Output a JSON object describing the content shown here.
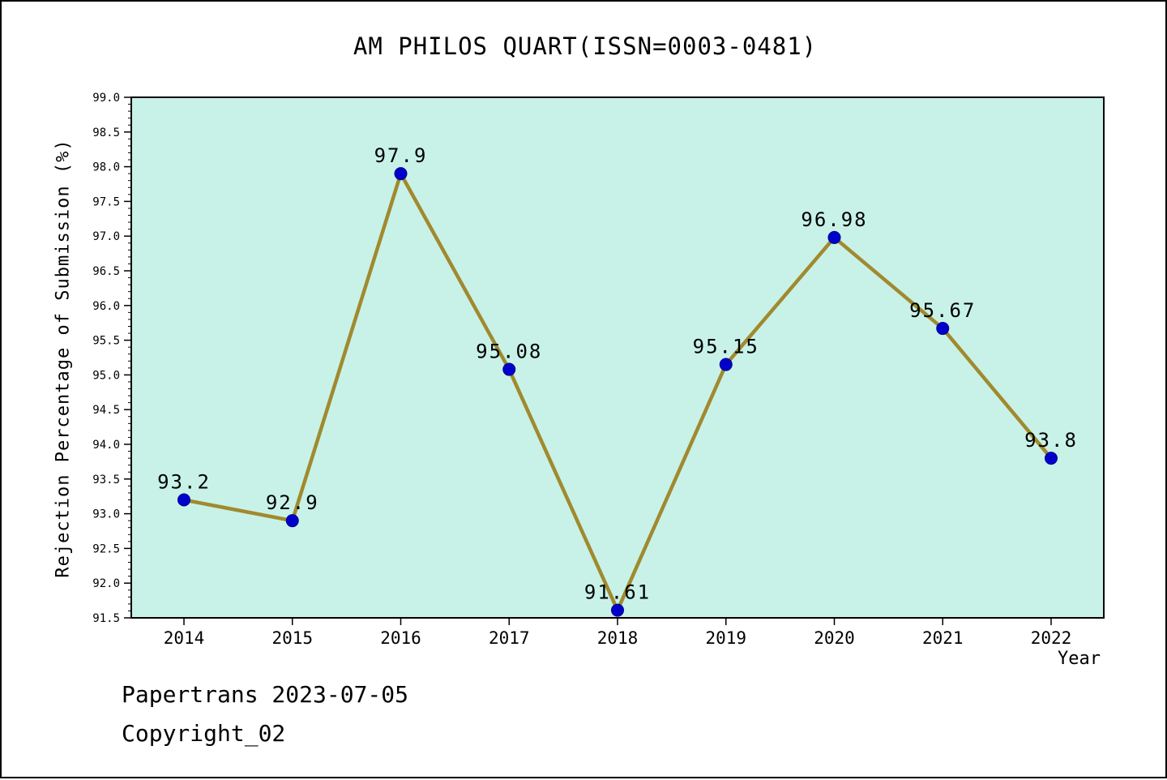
{
  "title": "AM PHILOS QUART(ISSN=0003-0481)",
  "footer": {
    "line1": "Papertrans 2023-07-05",
    "line2": "Copyright_02"
  },
  "chart_data": {
    "type": "line",
    "title": "AM PHILOS QUART(ISSN=0003-0481)",
    "xlabel": "Year",
    "ylabel": "Rejection Percentage of Submission (%)",
    "x": [
      2014,
      2015,
      2016,
      2017,
      2018,
      2019,
      2020,
      2021,
      2022
    ],
    "series": [
      {
        "name": "Rejection Percentage of Submission (%)",
        "values": [
          93.2,
          92.9,
          97.9,
          95.08,
          91.61,
          95.15,
          96.98,
          95.67,
          93.8
        ]
      }
    ],
    "point_labels": [
      "93.2",
      "92.9",
      "97.9",
      "95.08",
      "91.61",
      "95.15",
      "96.98",
      "95.67",
      "93.8"
    ],
    "ylim": [
      91.5,
      99.0
    ],
    "ytick_step": 0.5,
    "ytick_minor_step": 0.1,
    "grid": false,
    "legend": "none",
    "colors": {
      "line": "#a08a2e",
      "point_fill": "#0000cd",
      "point_edge": "#00008b",
      "plot_bg": "#c8f2e8",
      "axis": "#000000"
    }
  }
}
